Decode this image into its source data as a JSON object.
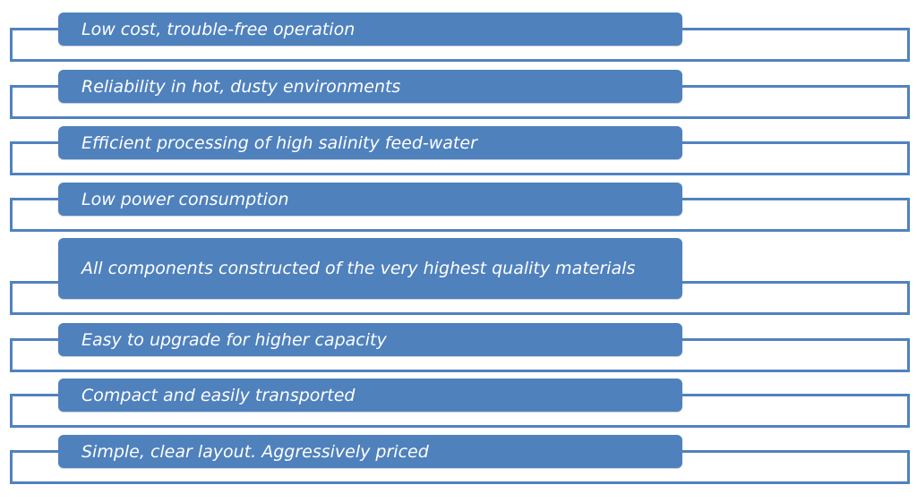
{
  "colors": {
    "bar_fill": "#4f81bd",
    "bracket_line": "#5082be",
    "text": "#ffffff"
  },
  "items": [
    {
      "label": "Low cost, trouble-free operation"
    },
    {
      "label": "Reliability in hot, dusty environments"
    },
    {
      "label": "Efficient processing of high salinity feed-water"
    },
    {
      "label": "Low power consumption"
    },
    {
      "label": "All components constructed of the very highest quality materials"
    },
    {
      "label": "Easy to upgrade for higher capacity"
    },
    {
      "label": "Compact and easily transported"
    },
    {
      "label": "Simple, clear layout. Aggressively priced"
    }
  ]
}
